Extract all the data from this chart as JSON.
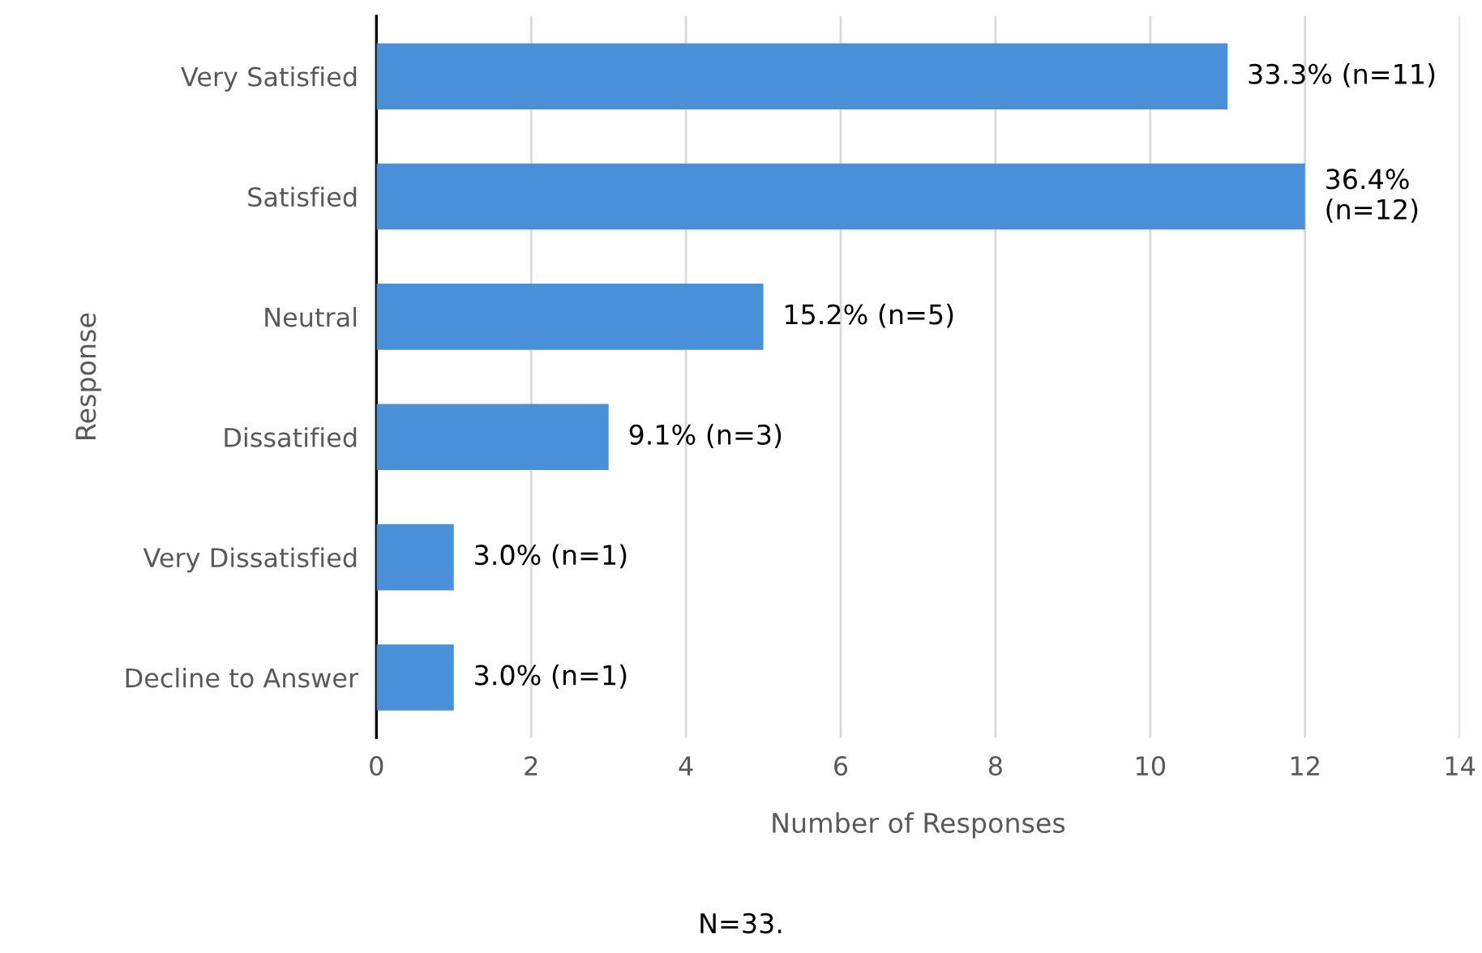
{
  "chart_data": {
    "type": "bar",
    "orientation": "horizontal",
    "xlabel": "Number of Responses",
    "ylabel": "Response",
    "categories": [
      "Very Satisfied",
      "Satisfied",
      "Neutral",
      "Dissatified",
      "Very Dissatisfied",
      "Decline to Answer"
    ],
    "values": [
      11,
      12,
      5,
      3,
      1,
      1
    ],
    "color": "#4a90d9",
    "value_labels": [
      "33.3% (n=11)",
      "36.4%\n(n=12)",
      "15.2% (n=5)",
      "9.1% (n=3)",
      "3.0% (n=1)",
      "3.0% (n=1)"
    ],
    "xlim": [
      0,
      14
    ],
    "xticks": [
      0,
      2,
      4,
      6,
      8,
      10,
      12,
      14
    ],
    "grid": "x",
    "legend": false,
    "annotations": [
      "N=33."
    ]
  }
}
